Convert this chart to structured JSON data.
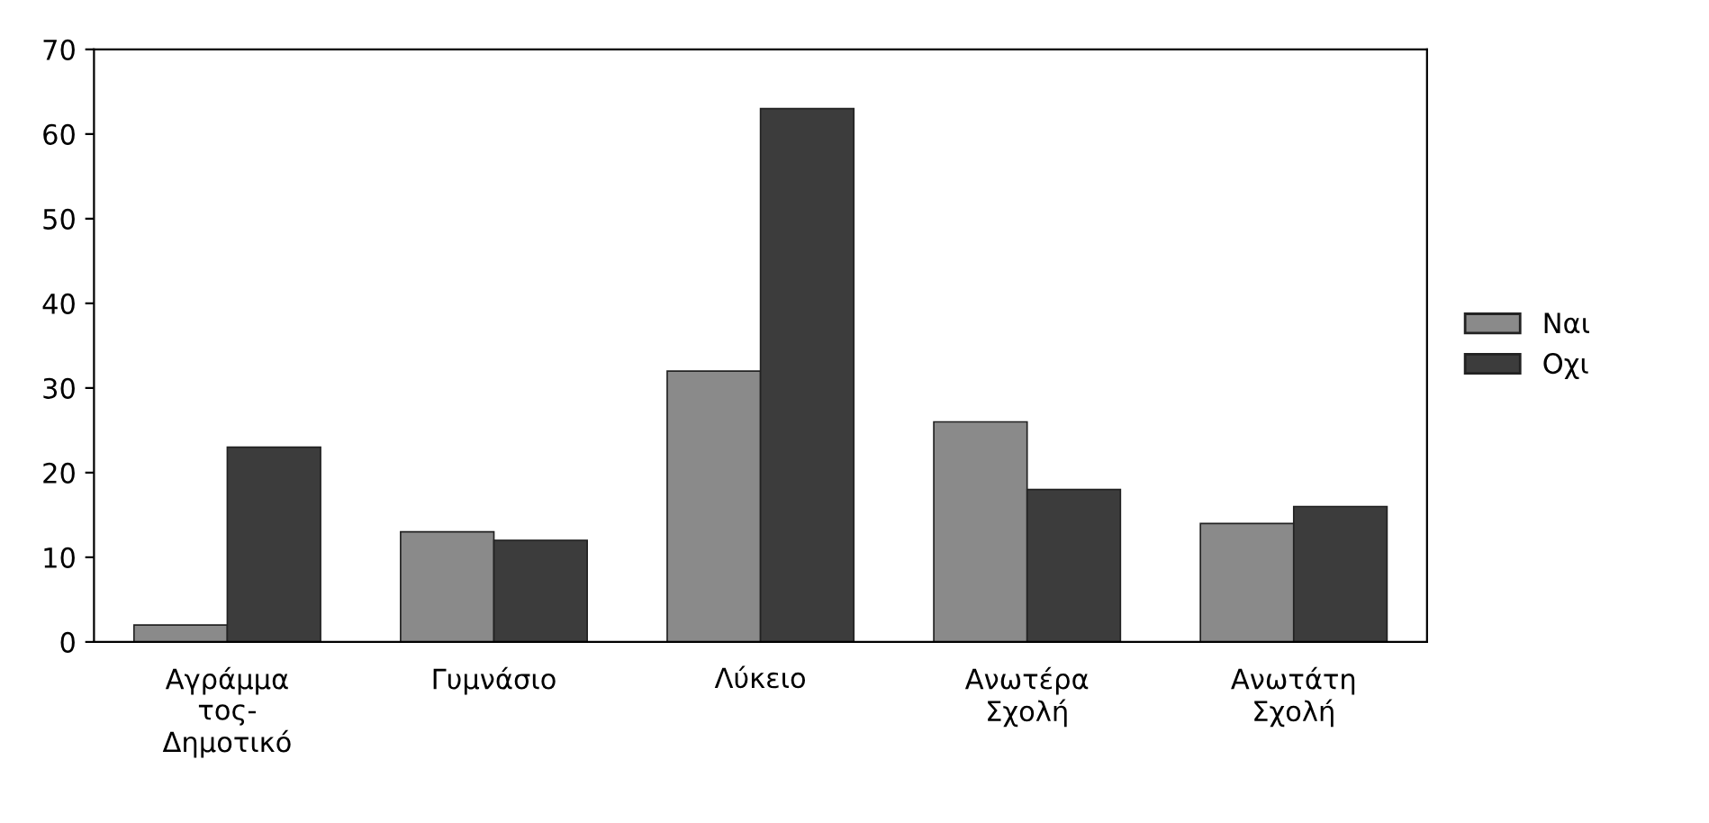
{
  "chart_data": {
    "type": "bar",
    "categories": [
      "Αγράμμα\nτος-\nΔημοτικό",
      "Γυμνάσιο",
      "Λύκειο",
      "Ανωτέρα\nΣχολή",
      "Ανωτάτη\nΣχολή"
    ],
    "series": [
      {
        "name": "Ναι",
        "color": "#8a8a8a",
        "values": [
          2,
          13,
          32,
          26,
          14
        ]
      },
      {
        "name": "Οχι",
        "color": "#3c3c3c",
        "values": [
          23,
          12,
          63,
          18,
          16
        ]
      }
    ],
    "ylim": [
      0,
      70
    ],
    "yticks": [
      0,
      10,
      20,
      30,
      40,
      50,
      60,
      70
    ],
    "grid": false,
    "legend": "right"
  }
}
